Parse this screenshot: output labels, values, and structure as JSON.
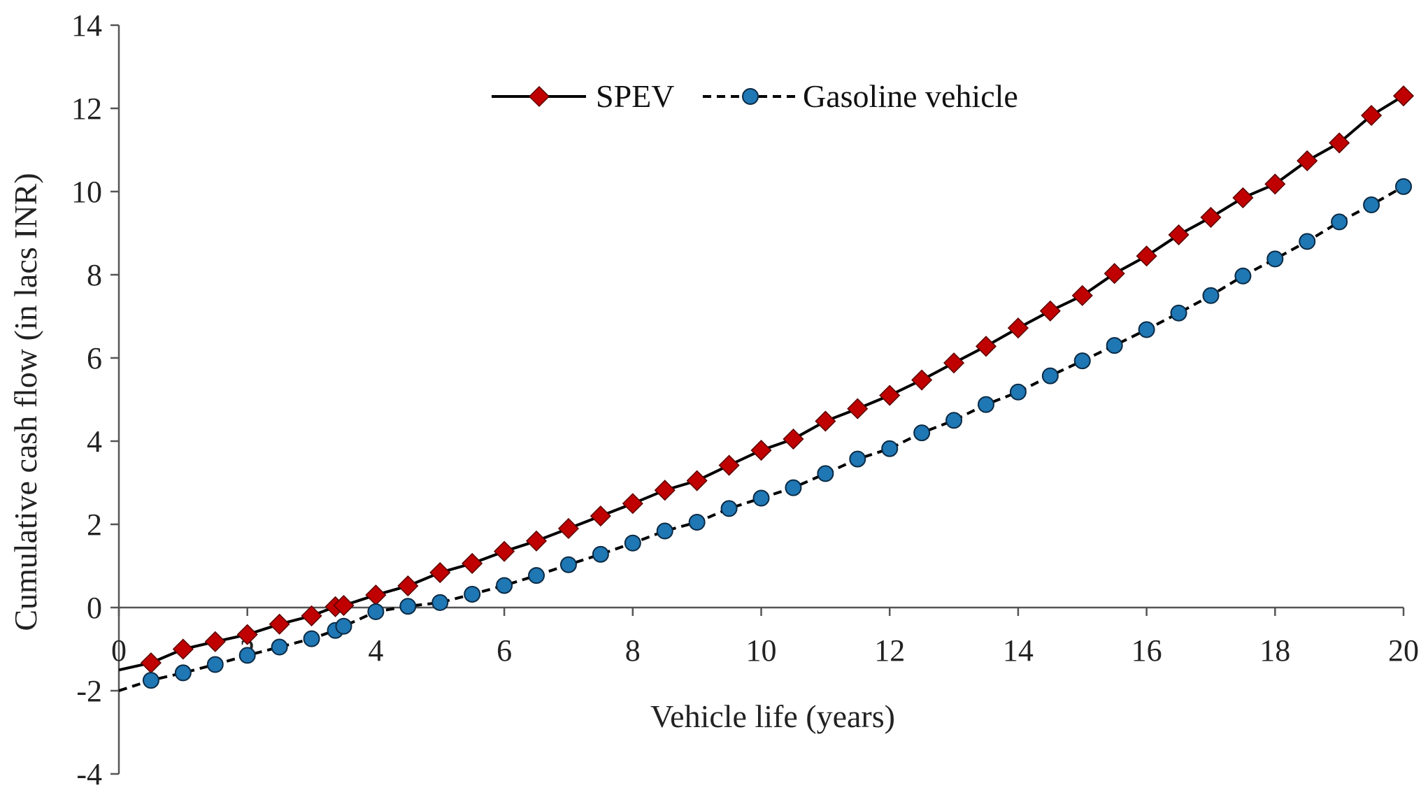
{
  "chart_data": {
    "type": "line",
    "title": "",
    "xlabel": "Vehicle life (years)",
    "ylabel": "Cumulative cash flow (in lacs INR)",
    "xlim": [
      0,
      20
    ],
    "ylim": [
      -4,
      14
    ],
    "xticks": [
      0,
      2,
      4,
      6,
      8,
      10,
      12,
      14,
      16,
      18,
      20
    ],
    "yticks": [
      -4,
      -2,
      0,
      2,
      4,
      6,
      8,
      10,
      12,
      14
    ],
    "grid": false,
    "legend_position": "top-center",
    "series": [
      {
        "name": "SPEV",
        "color": "#c00000",
        "line_color": "#000000",
        "line_style": "solid",
        "marker": "diamond",
        "start": [
          0,
          -1.5
        ],
        "points": [
          [
            0.5,
            -1.33
          ],
          [
            1.0,
            -1.0
          ],
          [
            1.5,
            -0.82
          ],
          [
            2.0,
            -0.65
          ],
          [
            2.5,
            -0.4
          ],
          [
            3.0,
            -0.2
          ],
          [
            3.37,
            0.02
          ],
          [
            3.5,
            0.05
          ],
          [
            4.0,
            0.3
          ],
          [
            4.5,
            0.52
          ],
          [
            5.0,
            0.84
          ],
          [
            5.5,
            1.06
          ],
          [
            6.0,
            1.35
          ],
          [
            6.5,
            1.6
          ],
          [
            7.0,
            1.9
          ],
          [
            7.5,
            2.2
          ],
          [
            8.0,
            2.5
          ],
          [
            8.5,
            2.82
          ],
          [
            9.0,
            3.05
          ],
          [
            9.5,
            3.42
          ],
          [
            10.0,
            3.78
          ],
          [
            10.5,
            4.05
          ],
          [
            11.0,
            4.48
          ],
          [
            11.5,
            4.78
          ],
          [
            12.0,
            5.1
          ],
          [
            12.5,
            5.47
          ],
          [
            13.0,
            5.88
          ],
          [
            13.5,
            6.28
          ],
          [
            14.0,
            6.72
          ],
          [
            14.5,
            7.13
          ],
          [
            15.0,
            7.5
          ],
          [
            15.5,
            8.03
          ],
          [
            16.0,
            8.45
          ],
          [
            16.5,
            8.96
          ],
          [
            17.0,
            9.38
          ],
          [
            17.5,
            9.85
          ],
          [
            18.0,
            10.18
          ],
          [
            18.5,
            10.74
          ],
          [
            19.0,
            11.17
          ],
          [
            19.5,
            11.83
          ],
          [
            20.0,
            12.3
          ]
        ]
      },
      {
        "name": "Gasoline vehicle",
        "color": "#1f77b4",
        "line_color": "#000000",
        "line_style": "dashed",
        "marker": "circle",
        "start": [
          0,
          -2.0
        ],
        "points": [
          [
            0.5,
            -1.75
          ],
          [
            1.0,
            -1.57
          ],
          [
            1.5,
            -1.37
          ],
          [
            2.0,
            -1.15
          ],
          [
            2.5,
            -0.95
          ],
          [
            3.0,
            -0.75
          ],
          [
            3.37,
            -0.55
          ],
          [
            3.5,
            -0.45
          ],
          [
            4.0,
            -0.1
          ],
          [
            4.5,
            0.03
          ],
          [
            5.0,
            0.12
          ],
          [
            5.5,
            0.32
          ],
          [
            6.0,
            0.53
          ],
          [
            6.5,
            0.77
          ],
          [
            7.0,
            1.03
          ],
          [
            7.5,
            1.28
          ],
          [
            8.0,
            1.55
          ],
          [
            8.5,
            1.84
          ],
          [
            9.0,
            2.05
          ],
          [
            9.5,
            2.38
          ],
          [
            10.0,
            2.63
          ],
          [
            10.5,
            2.88
          ],
          [
            11.0,
            3.22
          ],
          [
            11.5,
            3.57
          ],
          [
            12.0,
            3.82
          ],
          [
            12.5,
            4.2
          ],
          [
            13.0,
            4.5
          ],
          [
            13.5,
            4.88
          ],
          [
            14.0,
            5.18
          ],
          [
            14.5,
            5.57
          ],
          [
            15.0,
            5.93
          ],
          [
            15.5,
            6.3
          ],
          [
            16.0,
            6.68
          ],
          [
            16.5,
            7.08
          ],
          [
            17.0,
            7.5
          ],
          [
            17.5,
            7.97
          ],
          [
            18.0,
            8.38
          ],
          [
            18.5,
            8.8
          ],
          [
            19.0,
            9.27
          ],
          [
            19.5,
            9.68
          ],
          [
            20.0,
            10.12
          ]
        ]
      }
    ]
  }
}
